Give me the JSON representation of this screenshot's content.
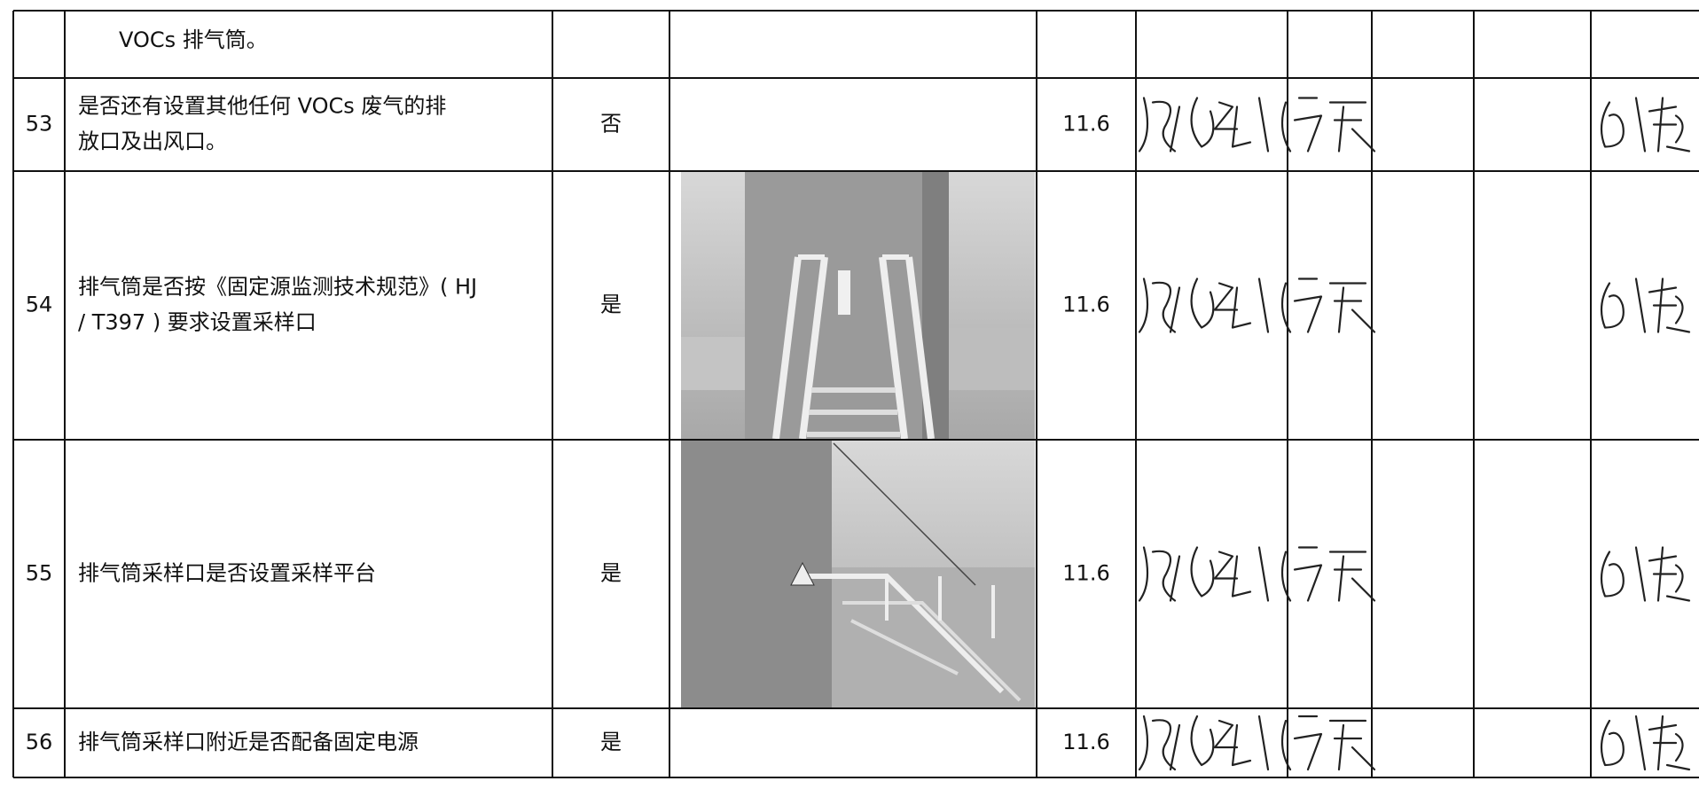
{
  "table": {
    "rows": [
      {
        "item_lines": [
          "VOCs 排气筒。"
        ]
      },
      {
        "number": "53",
        "item_lines": [
          "是否还有设置其他任何 VOCs 废气的排",
          "放口及出风口。"
        ],
        "result": "否",
        "date": "11.6"
      },
      {
        "number": "54",
        "item_lines": [
          "排气筒是否按《固定源监测技术规范》( HJ",
          "/ T397 ) 要求设置采样口"
        ],
        "result": "是",
        "date": "11.6"
      },
      {
        "number": "55",
        "item_lines": [
          "排气筒采样口是否设置采样平台"
        ],
        "result": "是",
        "date": "11.6"
      },
      {
        "number": "56",
        "item_lines": [
          "排气筒采样口附近是否配备固定电源"
        ],
        "result": "是",
        "date": "11.6"
      }
    ]
  }
}
